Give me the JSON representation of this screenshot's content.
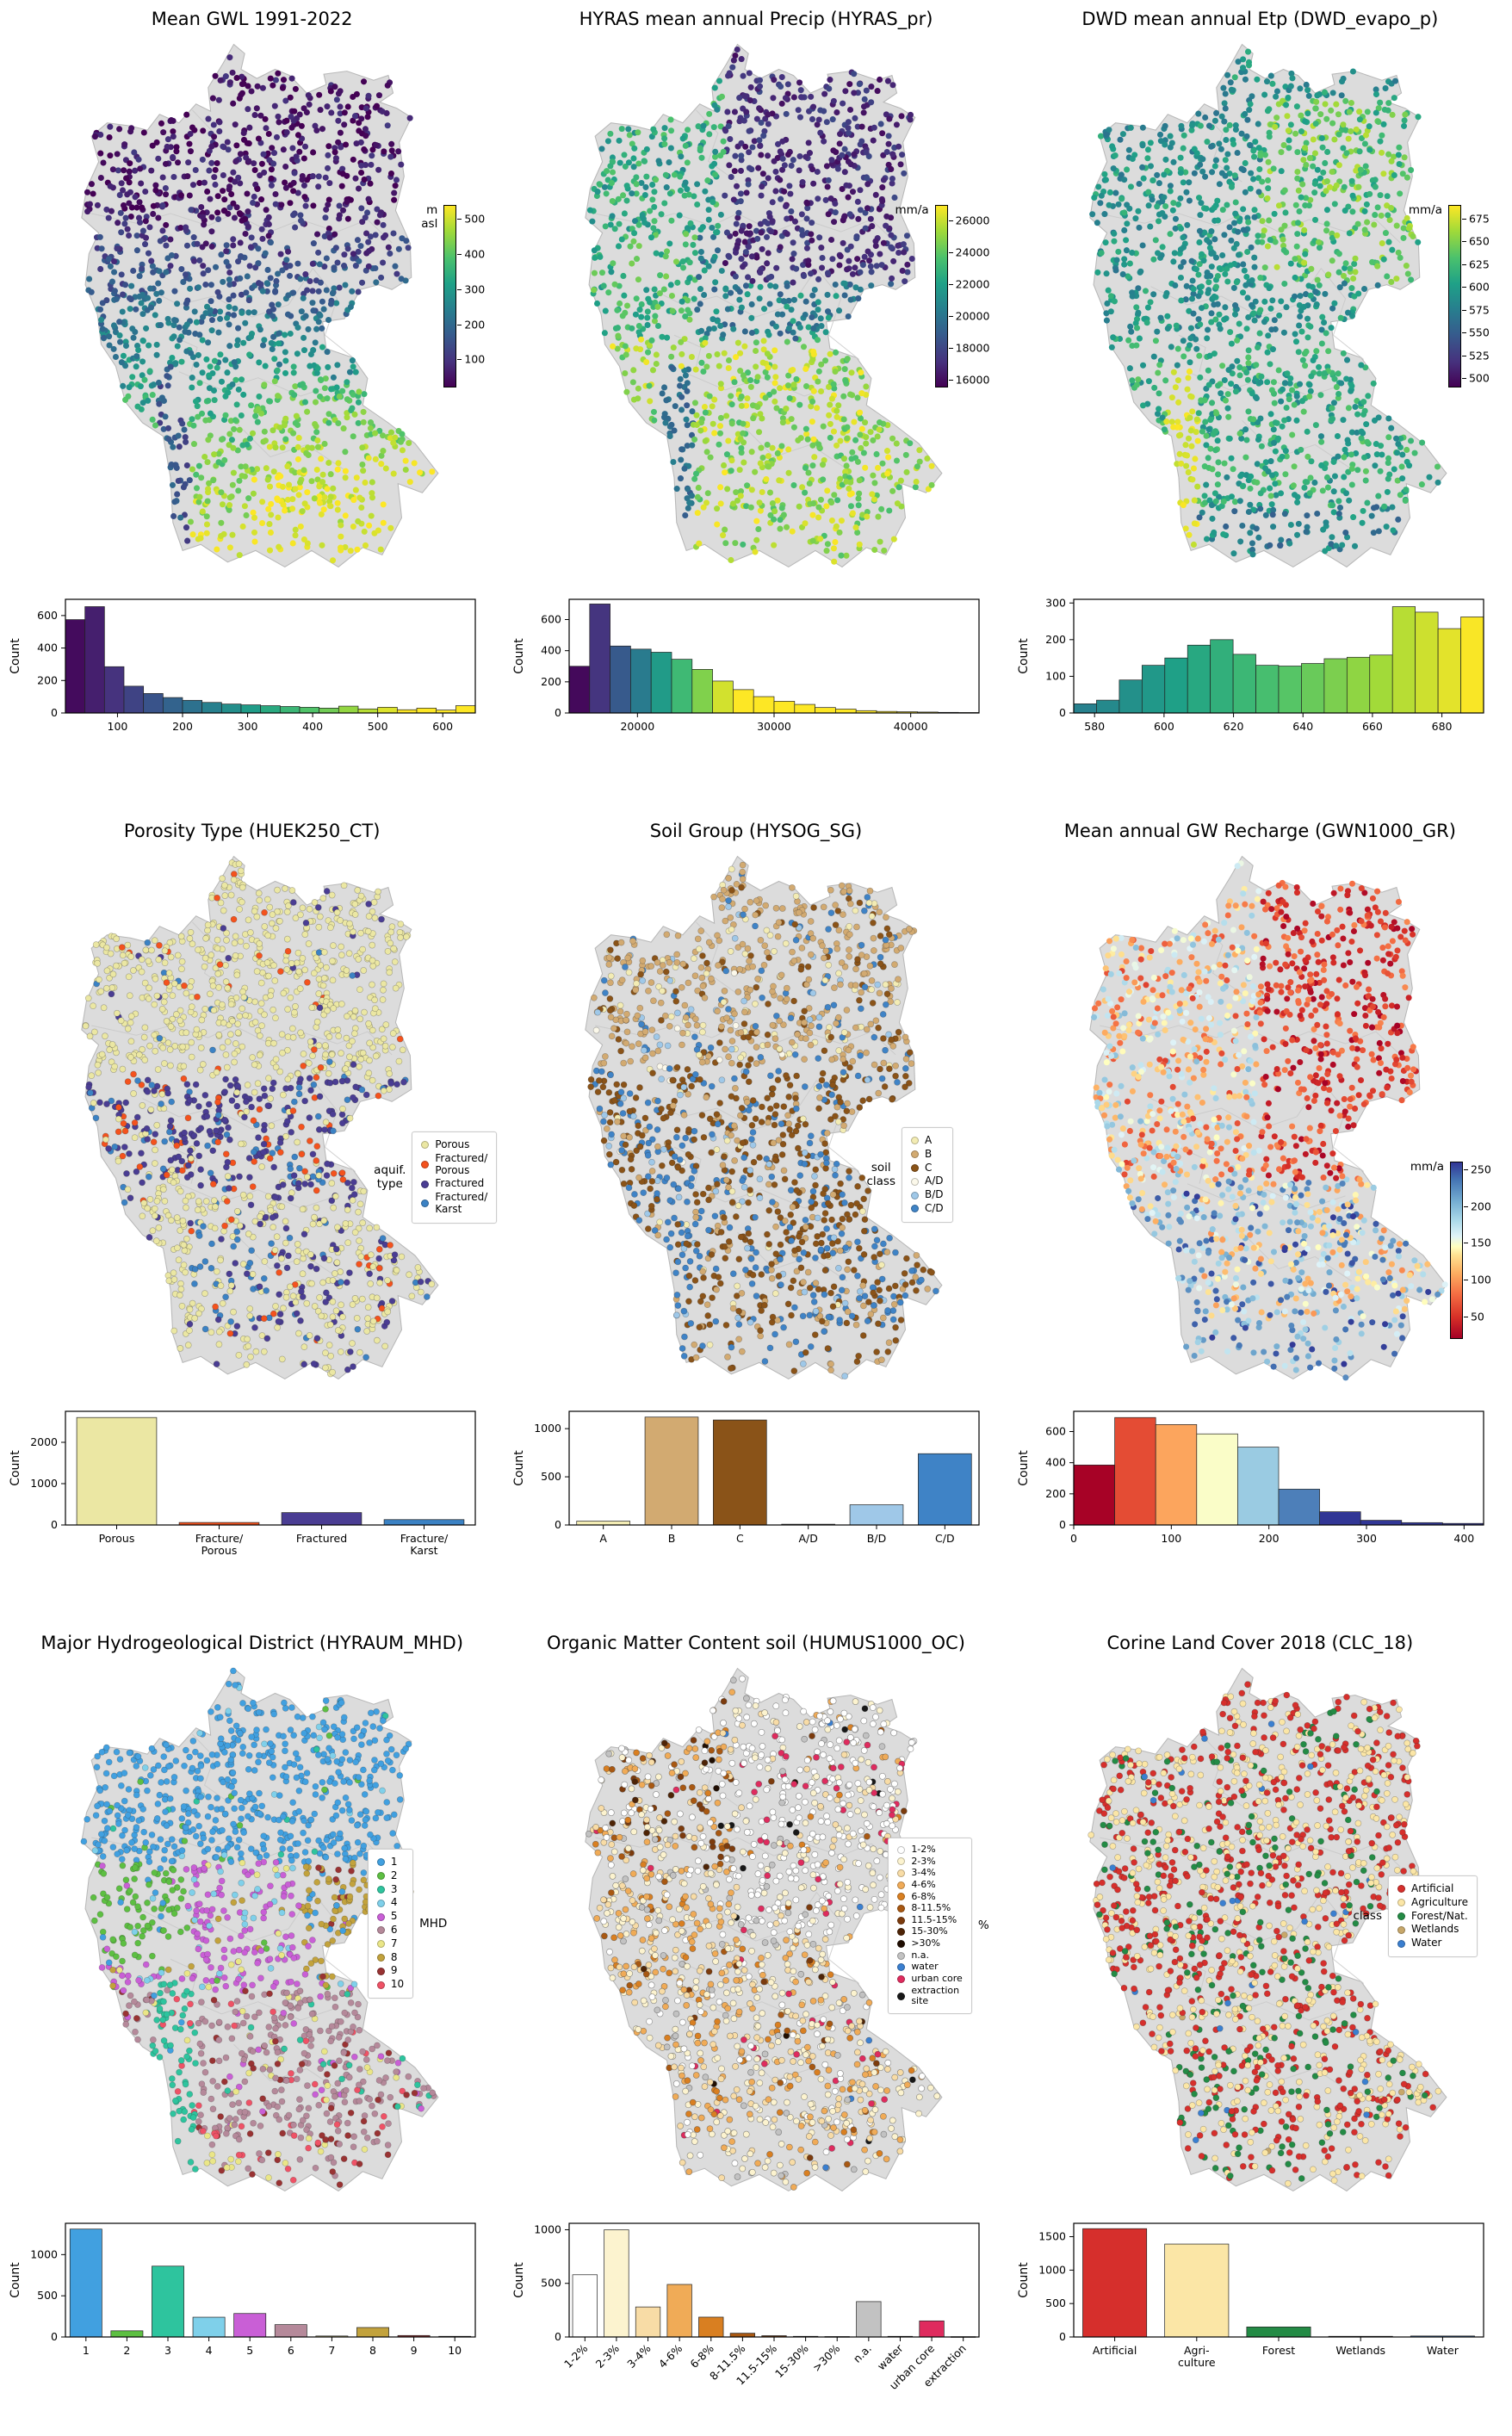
{
  "palettes": {
    "viridis": [
      [
        0,
        "#440154"
      ],
      [
        0.14,
        "#46327e"
      ],
      [
        0.29,
        "#365c8d"
      ],
      [
        0.43,
        "#277f8e"
      ],
      [
        0.57,
        "#1fa187"
      ],
      [
        0.71,
        "#4ac16d"
      ],
      [
        0.86,
        "#a0da39"
      ],
      [
        1,
        "#fde725"
      ]
    ],
    "rdylbu": [
      [
        0,
        "#a50026"
      ],
      [
        0.12,
        "#d73027"
      ],
      [
        0.25,
        "#f46d43"
      ],
      [
        0.37,
        "#fdae61"
      ],
      [
        0.47,
        "#fee090"
      ],
      [
        0.52,
        "#ffffbf"
      ],
      [
        0.58,
        "#e0f3f8"
      ],
      [
        0.67,
        "#abd9e9"
      ],
      [
        0.78,
        "#74add1"
      ],
      [
        0.9,
        "#4575b4"
      ],
      [
        1,
        "#313695"
      ]
    ]
  },
  "map": {
    "land_fill": "#dcdcdc",
    "land_stroke": "#b8b8b8",
    "border_color": "#c8c8c8",
    "points_per_map": 1500,
    "outline": [
      [
        300,
        22
      ],
      [
        318,
        37
      ],
      [
        312,
        63
      ],
      [
        338,
        78
      ],
      [
        368,
        63
      ],
      [
        392,
        73
      ],
      [
        420,
        102
      ],
      [
        452,
        88
      ],
      [
        448,
        71
      ],
      [
        486,
        66
      ],
      [
        530,
        81
      ],
      [
        554,
        73
      ],
      [
        562,
        102
      ],
      [
        540,
        117
      ],
      [
        568,
        127
      ],
      [
        592,
        142
      ],
      [
        572,
        183
      ],
      [
        580,
        239
      ],
      [
        566,
        295
      ],
      [
        590,
        349
      ],
      [
        592,
        405
      ],
      [
        560,
        425
      ],
      [
        538,
        417
      ],
      [
        508,
        425
      ],
      [
        482,
        473
      ],
      [
        446,
        478
      ],
      [
        452,
        522
      ],
      [
        496,
        537
      ],
      [
        520,
        571
      ],
      [
        512,
        615
      ],
      [
        554,
        644
      ],
      [
        598,
        678
      ],
      [
        636,
        727
      ],
      [
        610,
        759
      ],
      [
        570,
        744
      ],
      [
        576,
        800
      ],
      [
        544,
        861
      ],
      [
        512,
        849
      ],
      [
        472,
        881
      ],
      [
        428,
        854
      ],
      [
        384,
        881
      ],
      [
        336,
        854
      ],
      [
        290,
        873
      ],
      [
        246,
        844
      ],
      [
        216,
        854
      ],
      [
        200,
        808
      ],
      [
        196,
        734
      ],
      [
        184,
        666
      ],
      [
        150,
        644
      ],
      [
        122,
        610
      ],
      [
        106,
        551
      ],
      [
        82,
        515
      ],
      [
        76,
        466
      ],
      [
        56,
        417
      ],
      [
        62,
        366
      ],
      [
        78,
        332
      ],
      [
        50,
        307
      ],
      [
        58,
        259
      ],
      [
        78,
        215
      ],
      [
        66,
        173
      ],
      [
        92,
        151
      ],
      [
        130,
        156
      ],
      [
        158,
        163
      ],
      [
        178,
        137
      ],
      [
        210,
        151
      ],
      [
        238,
        120
      ],
      [
        262,
        132
      ],
      [
        258,
        93
      ],
      [
        282,
        54
      ]
    ],
    "inner_borders": [
      "M232,130 L268,168 L252,214 L300,248",
      "M66,300 L140,316 L196,300 L258,320 L300,300",
      "M300,300 L360,330 L410,310 L470,330 L520,310",
      "M150,420 L210,450 L266,436 L330,470 L390,450",
      "M430,390 L470,440 L450,500 L500,540",
      "M210,560 L280,590 L340,570 L410,600 L470,580",
      "M300,640 L360,700 L420,680 L480,720",
      "M196,500 L240,520 L230,560",
      "M520,310 L560,348",
      "M390,450 L430,390"
    ]
  },
  "chart_data": [
    {
      "id": "gwl",
      "type": "map-scatter",
      "title": "Mean GWL 1991-2022",
      "point_stroke": null,
      "colorbar": {
        "label_lines": [
          "m",
          "asl"
        ],
        "ticks": [
          100,
          200,
          300,
          400,
          500
        ],
        "vmin": 20,
        "vmax": 540,
        "palette": "viridis"
      },
      "hist": {
        "kind": "hist",
        "ylabel": "Count",
        "ylim": [
          0,
          700
        ],
        "yticks": [
          0,
          200,
          400,
          600
        ],
        "xticks": [
          100,
          200,
          300,
          400,
          500,
          600
        ],
        "xmin": 20,
        "xmax": 650,
        "palette": "viridis",
        "color_vmin": 20,
        "color_vmax": 540,
        "values": [
          575,
          655,
          285,
          165,
          120,
          95,
          78,
          65,
          55,
          50,
          45,
          40,
          35,
          30,
          42,
          25,
          35,
          20,
          30,
          18,
          45
        ]
      }
    },
    {
      "id": "pr",
      "type": "map-scatter",
      "title": "HYRAS mean annual Precip (HYRAS_pr)",
      "point_stroke": null,
      "colorbar": {
        "label_lines": [
          "mm/a"
        ],
        "ticks": [
          16000,
          18000,
          20000,
          22000,
          24000,
          26000
        ],
        "vmin": 15500,
        "vmax": 27000,
        "palette": "viridis"
      },
      "hist": {
        "kind": "hist",
        "ylabel": "Count",
        "ylim": [
          0,
          730
        ],
        "yticks": [
          0,
          200,
          400,
          600
        ],
        "xticks": [
          20000,
          30000,
          40000
        ],
        "xmin": 15000,
        "xmax": 45000,
        "palette": "viridis",
        "color_vmin": 15500,
        "color_vmax": 27000,
        "values": [
          300,
          700,
          430,
          410,
          390,
          345,
          280,
          205,
          150,
          105,
          75,
          55,
          35,
          25,
          15,
          10,
          8,
          6,
          4,
          3
        ]
      }
    },
    {
      "id": "etp",
      "type": "map-scatter",
      "title": "DWD mean annual Etp (DWD_evapo_p)",
      "point_stroke": null,
      "colorbar": {
        "label_lines": [
          "mm/a"
        ],
        "ticks": [
          500,
          525,
          550,
          575,
          600,
          625,
          650,
          675
        ],
        "vmin": 490,
        "vmax": 690,
        "palette": "viridis"
      },
      "hist": {
        "kind": "hist",
        "ylabel": "Count",
        "ylim": [
          0,
          310
        ],
        "yticks": [
          0,
          100,
          200,
          300
        ],
        "xticks": [
          580,
          600,
          620,
          640,
          660,
          680
        ],
        "xmin": 574,
        "xmax": 692,
        "palette": "viridis",
        "color_vmin": 490,
        "color_vmax": 690,
        "values": [
          25,
          35,
          90,
          130,
          150,
          185,
          200,
          160,
          130,
          128,
          135,
          148,
          152,
          158,
          290,
          275,
          230,
          262
        ]
      }
    },
    {
      "id": "ct",
      "type": "map-scatter",
      "title": "Porosity Type (HUEK250_CT)",
      "point_stroke": "rgba(40,40,40,0.35)",
      "legend": {
        "label_lines": [
          "aquif.",
          "type"
        ],
        "label_side": "left",
        "items": [
          {
            "label": "Porous",
            "color": "#ebe7a3"
          },
          {
            "label": "Fractured/\nPorous",
            "color": "#f4521d"
          },
          {
            "label": "Fractured",
            "color": "#4a3d93"
          },
          {
            "label": "Fractured/\nKarst",
            "color": "#3b82c4"
          }
        ]
      },
      "hist": {
        "kind": "bars",
        "ylabel": "Count",
        "ylim": [
          0,
          2750
        ],
        "yticks": [
          0,
          1000,
          2000
        ],
        "categories": [
          "Porous",
          "Fracture/\nPorous",
          "Fractured",
          "Fracture/\nKarst"
        ],
        "values": [
          2600,
          60,
          300,
          130
        ],
        "colors": [
          "#ebe7a3",
          "#f4521d",
          "#4a3d93",
          "#3b82c4"
        ]
      }
    },
    {
      "id": "sg",
      "type": "map-scatter",
      "title": "Soil Group (HYSOG_SG)",
      "point_stroke": "rgba(40,40,40,0.35)",
      "legend": {
        "label_lines": [
          "soil",
          "class"
        ],
        "label_side": "left",
        "items": [
          {
            "label": "A",
            "color": "#f3ecb4"
          },
          {
            "label": "B",
            "color": "#d2aa71"
          },
          {
            "label": "C",
            "color": "#8a5318"
          },
          {
            "label": "A/D",
            "color": "#fbf8ea"
          },
          {
            "label": "B/D",
            "color": "#9fc8e8"
          },
          {
            "label": "C/D",
            "color": "#3f83c6"
          }
        ]
      },
      "hist": {
        "kind": "bars",
        "ylabel": "Count",
        "ylim": [
          0,
          1180
        ],
        "yticks": [
          0,
          500,
          1000
        ],
        "categories": [
          "A",
          "B",
          "C",
          "A/D",
          "B/D",
          "C/D"
        ],
        "values": [
          40,
          1120,
          1090,
          8,
          210,
          740
        ],
        "colors": [
          "#f3ecb4",
          "#d2aa71",
          "#8a5318",
          "#fbf8ea",
          "#9fc8e8",
          "#3f83c6"
        ]
      }
    },
    {
      "id": "gr",
      "type": "map-scatter",
      "title": "Mean annual GW Recharge (GWN1000_GR)",
      "point_stroke": null,
      "colorbar": {
        "label_lines": [
          "mm/a"
        ],
        "ticks": [
          50,
          100,
          150,
          200,
          250
        ],
        "vmin": 20,
        "vmax": 260,
        "palette": "rdylbu"
      },
      "hist": {
        "kind": "hist",
        "ylabel": "Count",
        "ylim": [
          0,
          730
        ],
        "yticks": [
          0,
          200,
          400,
          600
        ],
        "xticks": [
          0,
          100,
          200,
          300,
          400
        ],
        "xmin": 0,
        "xmax": 420,
        "palette": "rdylbu",
        "color_vmin": 20,
        "color_vmax": 260,
        "values": [
          385,
          690,
          645,
          585,
          500,
          230,
          85,
          30,
          15,
          10
        ]
      }
    },
    {
      "id": "mhd",
      "type": "map-scatter",
      "title": "Major Hydrogeological District (HYRAUM_MHD)",
      "point_stroke": "rgba(40,40,40,0.3)",
      "legend": {
        "label_lines": [
          "MHD"
        ],
        "label_side": "right",
        "items": [
          {
            "label": "1",
            "color": "#41a0e0"
          },
          {
            "label": "2",
            "color": "#5dbf42"
          },
          {
            "label": "3",
            "color": "#2ec49e"
          },
          {
            "label": "4",
            "color": "#7fd0ea"
          },
          {
            "label": "5",
            "color": "#c95fd6"
          },
          {
            "label": "6",
            "color": "#b5899a"
          },
          {
            "label": "7",
            "color": "#eae687"
          },
          {
            "label": "8",
            "color": "#c2a23c"
          },
          {
            "label": "9",
            "color": "#993333"
          },
          {
            "label": "10",
            "color": "#ef5266"
          }
        ]
      },
      "hist": {
        "kind": "bars",
        "ylabel": "Count",
        "ylim": [
          0,
          1380
        ],
        "yticks": [
          0,
          500,
          1000
        ],
        "categories": [
          "1",
          "2",
          "3",
          "4",
          "5",
          "6",
          "7",
          "8",
          "9",
          "10"
        ],
        "values": [
          1310,
          75,
          860,
          240,
          285,
          150,
          12,
          115,
          18,
          8
        ],
        "colors": [
          "#41a0e0",
          "#5dbf42",
          "#2ec49e",
          "#7fd0ea",
          "#c95fd6",
          "#b5899a",
          "#eae687",
          "#c2a23c",
          "#993333",
          "#ef5266"
        ]
      }
    },
    {
      "id": "oc",
      "type": "map-scatter",
      "title": "Organic Matter Content soil (HUMUS1000_OC)",
      "point_stroke": "rgba(60,60,60,0.55)",
      "legend": {
        "label_lines": [
          "%"
        ],
        "label_side": "right",
        "items": [
          {
            "label": "1-2%",
            "color": "#ffffff"
          },
          {
            "label": "2-3%",
            "color": "#fcf3cf"
          },
          {
            "label": "3-4%",
            "color": "#f8dca6"
          },
          {
            "label": "4-6%",
            "color": "#f0ab57"
          },
          {
            "label": "6-8%",
            "color": "#d97f21"
          },
          {
            "label": "8-11.5%",
            "color": "#a85812"
          },
          {
            "label": "11.5-15%",
            "color": "#7c3b0d"
          },
          {
            "label": "15-30%",
            "color": "#4e2406"
          },
          {
            "label": ">30%",
            "color": "#200e02"
          },
          {
            "label": "n.a.",
            "color": "#c2c2c2"
          },
          {
            "label": "water",
            "color": "#3a7fd0"
          },
          {
            "label": "urban core",
            "color": "#df2b5e"
          },
          {
            "label": "extraction\nsite",
            "color": "#181818"
          }
        ]
      },
      "hist": {
        "kind": "bars",
        "ylabel": "Count",
        "ylim": [
          0,
          1060
        ],
        "yticks": [
          0,
          500,
          1000
        ],
        "rotate_labels": true,
        "categories": [
          "1-2%",
          "2-3%",
          "3-4%",
          "4-6%",
          "6-8%",
          "8-11.5%",
          "11.5-15%",
          "15-30%",
          ">30%",
          "n.a.",
          "water",
          "urban core",
          "extraction"
        ],
        "values": [
          580,
          1000,
          280,
          490,
          185,
          35,
          12,
          6,
          4,
          330,
          6,
          150,
          3
        ],
        "colors": [
          "#ffffff",
          "#fcf3cf",
          "#f8dca6",
          "#f0ab57",
          "#d97f21",
          "#a85812",
          "#7c3b0d",
          "#4e2406",
          "#200e02",
          "#c2c2c2",
          "#3a7fd0",
          "#df2b5e",
          "#181818"
        ]
      }
    },
    {
      "id": "clc",
      "type": "map-scatter",
      "title": "Corine Land Cover 2018 (CLC_18)",
      "point_stroke": "rgba(40,40,40,0.35)",
      "legend": {
        "label_lines": [
          "class"
        ],
        "label_side": "left",
        "items": [
          {
            "label": "Artificial",
            "color": "#d62f2c"
          },
          {
            "label": "Agriculture",
            "color": "#fbe6a6"
          },
          {
            "label": "Forest/Nat.",
            "color": "#238b45"
          },
          {
            "label": "Wetlands",
            "color": "#c7a76a"
          },
          {
            "label": "Water",
            "color": "#3a7fd0"
          }
        ]
      },
      "hist": {
        "kind": "bars",
        "ylabel": "Count",
        "ylim": [
          0,
          1700
        ],
        "yticks": [
          0,
          500,
          1000,
          1500
        ],
        "categories": [
          "Artificial",
          "Agri-\nculture",
          "Forest",
          "Wetlands",
          "Water"
        ],
        "values": [
          1620,
          1390,
          150,
          10,
          15
        ],
        "colors": [
          "#d62f2c",
          "#fbe6a6",
          "#238b45",
          "#c7a76a",
          "#3a7fd0"
        ]
      }
    }
  ]
}
